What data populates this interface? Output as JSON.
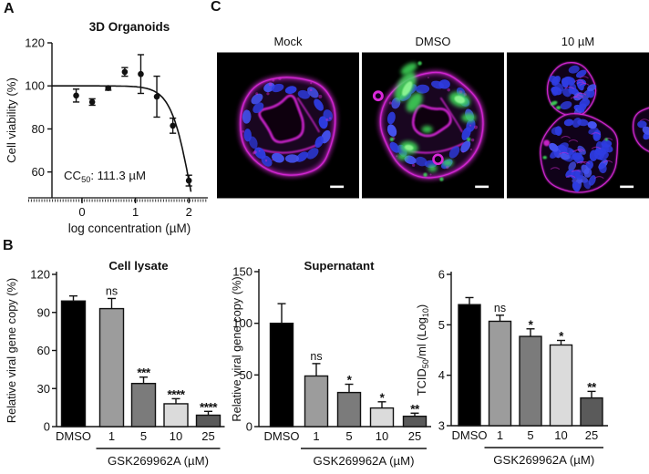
{
  "labels": {
    "a": "A",
    "b": "B",
    "c": "C"
  },
  "panel_c": {
    "images": [
      {
        "label": "Mock",
        "type": "mock"
      },
      {
        "label": "DMSO",
        "type": "dmso"
      },
      {
        "label": "10 µM",
        "type": "treated"
      }
    ],
    "colors": {
      "background": "#000000",
      "nuclei": "#2e3ce2",
      "membrane": "#d928d9",
      "infection": "#3fdd5a",
      "scalebar": "#ffffff"
    }
  },
  "chart_data": [
    {
      "type": "scatter",
      "panel": "A",
      "title": "3D Organoids",
      "xlabel": "log concentration (µM)",
      "ylabel": "Cell viability (%)",
      "xlim": [
        -0.56,
        2.34
      ],
      "ylim": [
        48,
        120
      ],
      "xticks": [
        0,
        1,
        2
      ],
      "yticks": [
        60,
        80,
        100,
        120
      ],
      "x": [
        -0.11,
        0.19,
        0.49,
        0.8,
        1.1,
        1.4,
        1.7,
        2.0
      ],
      "y": [
        95.5,
        92.5,
        99,
        106.5,
        105.5,
        95,
        81.5,
        56
      ],
      "yerr": [
        3,
        1.5,
        1,
        2,
        9,
        9.5,
        3.5,
        2.5
      ],
      "fit": {
        "top": 100,
        "log_cc50": 2.046,
        "hill": 2.3
      },
      "annotation_parts": [
        [
          "CC"
        ],
        [
          "50",
          "sub"
        ],
        [
          ": 111.3 µM"
        ]
      ],
      "grid": false,
      "legend": null
    },
    {
      "type": "bar",
      "panel": "B",
      "title": "Cell lysate",
      "ylabel_parts": [
        [
          "Relative viral gene copy (%)"
        ]
      ],
      "ylim": [
        0,
        120
      ],
      "yticks": [
        0,
        30,
        60,
        90,
        120
      ],
      "categories": [
        "DMSO",
        "1",
        "5",
        "10",
        "25"
      ],
      "values": [
        99,
        93,
        34,
        18,
        9
      ],
      "errors": [
        4,
        8,
        5,
        4,
        3
      ],
      "sig": [
        "",
        "ns",
        "***",
        "****",
        "****"
      ],
      "bar_colors": [
        "#000000",
        "#9c9c9c",
        "#7b7b7b",
        "#dbdbdb",
        "#5a5a5a"
      ],
      "group_label": "GSK269962A (µM)",
      "grid": false
    },
    {
      "type": "bar",
      "panel": "B",
      "title": "Supernatant",
      "ylabel_parts": [
        [
          "Relative viral gene copy (%)"
        ]
      ],
      "ylim": [
        0,
        150
      ],
      "yticks": [
        0,
        50,
        100,
        150
      ],
      "categories": [
        "DMSO",
        "1",
        "5",
        "10",
        "25"
      ],
      "values": [
        100,
        49,
        33,
        18,
        10
      ],
      "errors": [
        19,
        12,
        8,
        6,
        3
      ],
      "sig": [
        "",
        "ns",
        "*",
        "*",
        "**"
      ],
      "bar_colors": [
        "#000000",
        "#9c9c9c",
        "#7b7b7b",
        "#dbdbdb",
        "#5a5a5a"
      ],
      "group_label": "GSK269962A (µM)",
      "grid": false
    },
    {
      "type": "bar",
      "panel": "B",
      "title": "",
      "ylabel_parts": [
        [
          "TCID"
        ],
        [
          "50",
          "sub"
        ],
        [
          "/ml (Log"
        ],
        [
          "10",
          "sub"
        ],
        [
          ")"
        ]
      ],
      "ylim": [
        3,
        6
      ],
      "yticks": [
        3,
        4,
        5,
        6
      ],
      "categories": [
        "DMSO",
        "1",
        "5",
        "10",
        "25"
      ],
      "values": [
        5.4,
        5.07,
        4.77,
        4.6,
        3.55
      ],
      "errors": [
        0.14,
        0.12,
        0.15,
        0.09,
        0.13
      ],
      "sig": [
        "",
        "ns",
        "*",
        "*",
        "**"
      ],
      "bar_colors": [
        "#000000",
        "#9c9c9c",
        "#7b7b7b",
        "#dbdbdb",
        "#5a5a5a"
      ],
      "group_label": "GSK269962A (µM)",
      "grid": false
    }
  ]
}
